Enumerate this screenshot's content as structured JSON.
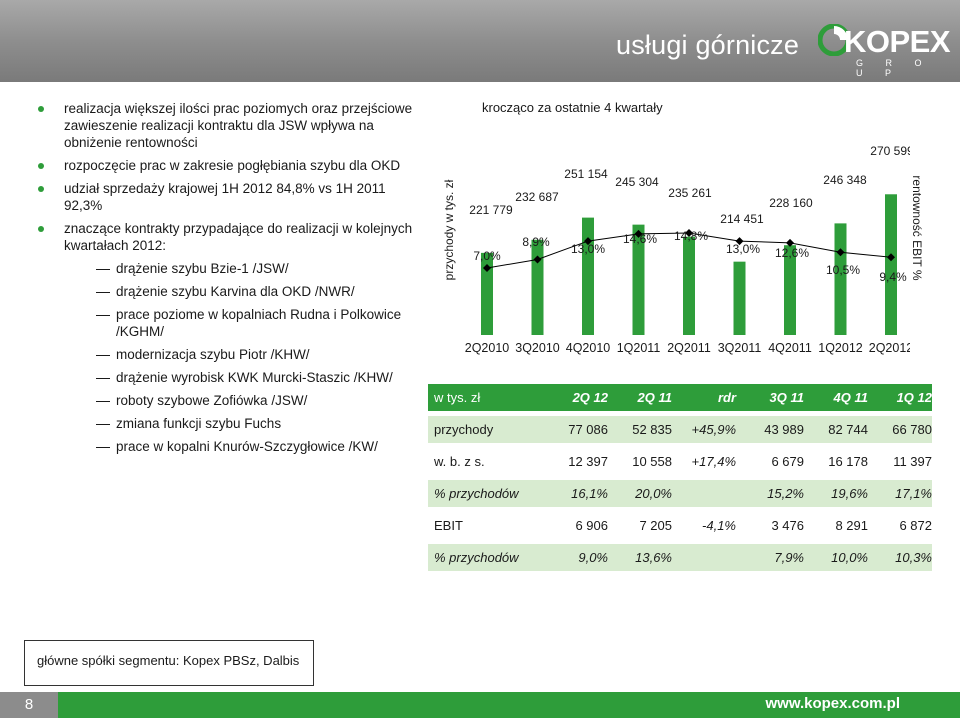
{
  "header": {
    "title": "usługi górnicze",
    "logo_word": "KOPEX",
    "logo_group": "G R O U P"
  },
  "bullets": [
    {
      "type": "main",
      "text": "realizacja większej ilości prac poziomych oraz przejściowe zawieszenie realizacji kontraktu dla JSW wpływa na obniżenie rentowności"
    },
    {
      "type": "main",
      "text": "rozpoczęcie prac w zakresie pogłębiania szybu dla OKD"
    },
    {
      "type": "main",
      "text": "udział sprzedaży krajowej 1H 2012 84,8% vs 1H 2011 92,3%"
    },
    {
      "type": "main",
      "text": "znaczące kontrakty przypadające do realizacji w kolejnych kwartałach 2012:"
    },
    {
      "type": "sub",
      "text": "drążenie szybu Bzie-1 /JSW/"
    },
    {
      "type": "sub",
      "text": "drążenie szybu Karvina dla OKD /NWR/"
    },
    {
      "type": "sub",
      "text": "prace poziome w kopalniach Rudna i Polkowice /KGHM/"
    },
    {
      "type": "sub",
      "text": "modernizacja szybu Piotr /KHW/"
    },
    {
      "type": "sub",
      "text": "drążenie wyrobisk KWK Murcki-Staszic /KHW/"
    },
    {
      "type": "sub",
      "text": "roboty szybowe Zofiówka /JSW/"
    },
    {
      "type": "sub",
      "text": "zmiana funkcji szybu Fuchs"
    },
    {
      "type": "sub",
      "text": "prace w kopalni Knurów-Szczygłowice /KW/"
    }
  ],
  "chart_data": {
    "type": "bar",
    "title": "krocząco za ostatnie 4 kwartały",
    "ylabel": "przychody w tys. zł",
    "y2label": "rentowność EBIT %",
    "categories": [
      "2Q2010",
      "3Q2010",
      "4Q2010",
      "1Q2011",
      "2Q2011",
      "3Q2011",
      "4Q2011",
      "1Q2012",
      "2Q2012"
    ],
    "series": [
      {
        "kind": "bar",
        "values": [
          221779,
          232687,
          251154,
          245304,
          235261,
          214451,
          228160,
          246348,
          270599
        ],
        "labels": [
          "221 779",
          "232 687",
          "251 154",
          "245 304",
          "235 261",
          "214 451",
          "228 160",
          "246 348",
          "270 599"
        ],
        "color": "#2e9d3a"
      },
      {
        "kind": "line",
        "values": [
          7.0,
          8.9,
          13.0,
          14.6,
          14.8,
          13.0,
          12.6,
          10.5,
          9.4
        ],
        "labels": [
          "7,0%",
          "8,9%",
          "13,0%",
          "14,6%",
          "14,8%",
          "13,0%",
          "12,6%",
          "10,5%",
          "9,4%"
        ],
        "color": "#000000"
      }
    ],
    "ylim": [
      0,
      280000
    ],
    "y2lim": [
      0,
      20
    ],
    "grid": false
  },
  "table": {
    "header": [
      "w tys. zł",
      "2Q 12",
      "2Q 11",
      "rdr",
      "3Q 11",
      "4Q 11",
      "1Q 12"
    ],
    "rows": [
      {
        "cells": [
          "przychody",
          "77 086",
          "52 835",
          "+45,9%",
          "43 989",
          "82 744",
          "66 780"
        ],
        "style": "band"
      },
      {
        "cells": [
          "w. b. z s.",
          "12 397",
          "10 558",
          "+17,4%",
          "6 679",
          "16 178",
          "11 397"
        ],
        "style": "plain"
      },
      {
        "cells": [
          "% przychodów",
          "16,1%",
          "20,0%",
          "",
          "15,2%",
          "19,6%",
          "17,1%"
        ],
        "style": "band-italic"
      },
      {
        "cells": [
          "EBIT",
          "6 906",
          "7 205",
          "-4,1%",
          "3 476",
          "8 291",
          "6 872"
        ],
        "style": "plain"
      },
      {
        "cells": [
          "% przychodów",
          "9,0%",
          "13,6%",
          "",
          "7,9%",
          "10,0%",
          "10,3%"
        ],
        "style": "band-italic"
      }
    ]
  },
  "footnote": "główne spółki segmentu: Kopex PBSz, Dalbis",
  "footer": {
    "page_number": "8",
    "website": "www.kopex.com.pl"
  },
  "colors": {
    "accent": "#2e9d3a",
    "band": "#d8ebd0",
    "header_gray": "#8e8e8e"
  }
}
